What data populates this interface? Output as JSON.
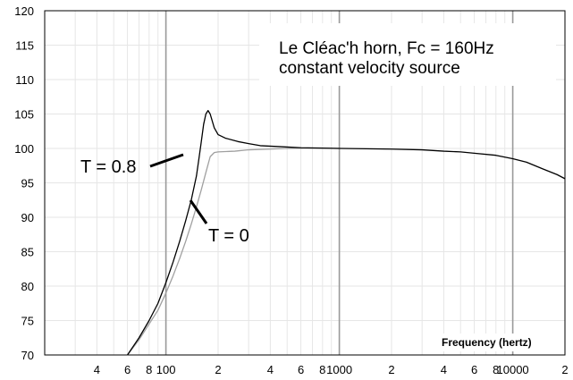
{
  "chart_data": {
    "type": "line",
    "title_lines": [
      "Le Cléac'h horn, Fc = 160Hz",
      "constant velocity source"
    ],
    "xlabel": "Frequency (hertz)",
    "ylabel": "",
    "x_scale": "log",
    "xlim": [
      20,
      20000
    ],
    "ylim": [
      70,
      120
    ],
    "grid": true,
    "y_ticks": [
      70,
      75,
      80,
      85,
      90,
      95,
      100,
      105,
      110,
      115,
      120
    ],
    "x_tick_labels": [
      {
        "value": 40,
        "label": "4"
      },
      {
        "value": 60,
        "label": "6"
      },
      {
        "value": 80,
        "label": "8"
      },
      {
        "value": 100,
        "label": "100"
      },
      {
        "value": 200,
        "label": "2"
      },
      {
        "value": 400,
        "label": "4"
      },
      {
        "value": 600,
        "label": "6"
      },
      {
        "value": 800,
        "label": "8"
      },
      {
        "value": 1000,
        "label": "1000"
      },
      {
        "value": 2000,
        "label": "2"
      },
      {
        "value": 4000,
        "label": "4"
      },
      {
        "value": 6000,
        "label": "6"
      },
      {
        "value": 8000,
        "label": "8"
      },
      {
        "value": 10000,
        "label": "10000"
      },
      {
        "value": 20000,
        "label": "2"
      }
    ],
    "series": [
      {
        "name": "T = 0.8",
        "color": "#000000",
        "points": [
          [
            60,
            70
          ],
          [
            70,
            72.5
          ],
          [
            80,
            75
          ],
          [
            90,
            77.5
          ],
          [
            100,
            80.5
          ],
          [
            110,
            83.5
          ],
          [
            120,
            86.5
          ],
          [
            130,
            89.5
          ],
          [
            140,
            92.5
          ],
          [
            150,
            96
          ],
          [
            155,
            98.5
          ],
          [
            160,
            101
          ],
          [
            165,
            103.5
          ],
          [
            170,
            105
          ],
          [
            175,
            105.5
          ],
          [
            180,
            105
          ],
          [
            190,
            103
          ],
          [
            200,
            102
          ],
          [
            220,
            101.5
          ],
          [
            260,
            101
          ],
          [
            300,
            100.7
          ],
          [
            350,
            100.4
          ],
          [
            420,
            100.3
          ],
          [
            500,
            100.2
          ],
          [
            600,
            100.1
          ],
          [
            800,
            100.05
          ],
          [
            1000,
            100
          ],
          [
            2000,
            99.9
          ],
          [
            3000,
            99.8
          ],
          [
            4000,
            99.6
          ],
          [
            5000,
            99.5
          ],
          [
            6000,
            99.3
          ],
          [
            8000,
            99
          ],
          [
            10000,
            98.5
          ],
          [
            12000,
            98
          ],
          [
            15000,
            97
          ],
          [
            18000,
            96.2
          ],
          [
            20000,
            95.6
          ]
        ]
      },
      {
        "name": "T = 0",
        "color": "#a0a0a0",
        "points": [
          [
            60,
            70
          ],
          [
            70,
            72.2
          ],
          [
            80,
            74.5
          ],
          [
            90,
            76.5
          ],
          [
            100,
            79
          ],
          [
            110,
            81.5
          ],
          [
            120,
            84
          ],
          [
            130,
            86.5
          ],
          [
            140,
            89
          ],
          [
            150,
            91.5
          ],
          [
            160,
            94
          ],
          [
            170,
            96.5
          ],
          [
            180,
            98.8
          ],
          [
            190,
            99.4
          ],
          [
            200,
            99.5
          ],
          [
            250,
            99.6
          ],
          [
            300,
            99.8
          ],
          [
            400,
            99.9
          ],
          [
            500,
            100
          ],
          [
            700,
            100.05
          ],
          [
            1000,
            100
          ]
        ]
      }
    ],
    "annotations": [
      {
        "text": "T = 0.8",
        "series": "T = 0.8"
      },
      {
        "text": "T = 0"
      }
    ]
  }
}
